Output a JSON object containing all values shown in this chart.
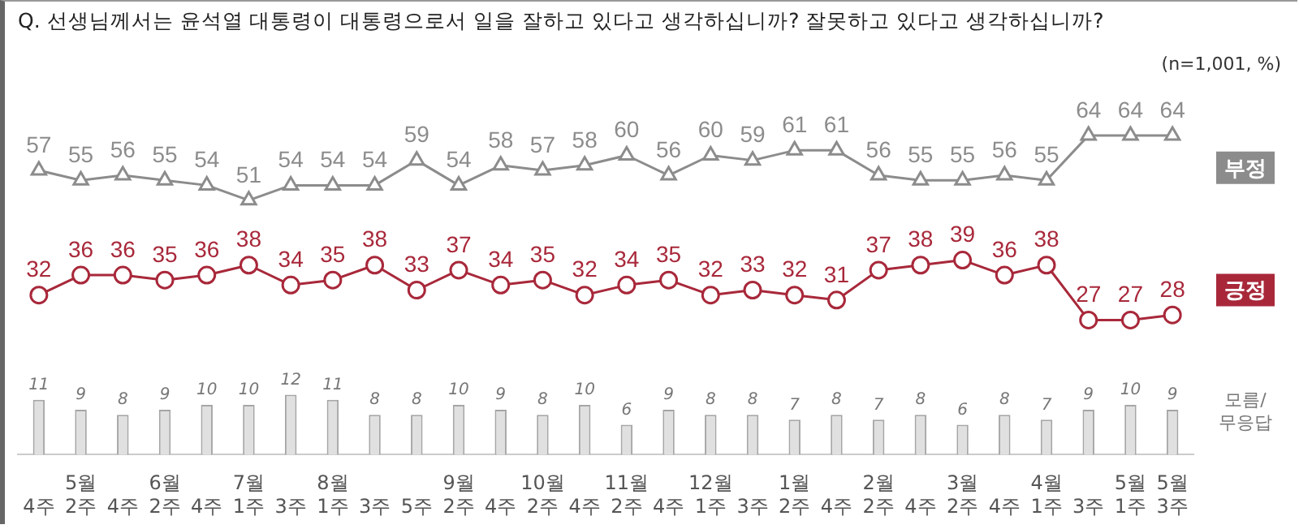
{
  "chart_data": {
    "type": "line",
    "title": "Q. 선생님께서는 윤석열 대통령이 대통령으로서 일을 잘하고 있다고 생각하십니까? 잘못하고 있다고 생각하십니까?",
    "annotations": [
      "(n=1,001, %)"
    ],
    "categories": [
      "4주",
      "5월\n2주",
      "4주",
      "6월\n2주",
      "4주",
      "7월\n1주",
      "3주",
      "8월\n1주",
      "3주",
      "5주",
      "9월\n2주",
      "4주",
      "10월\n2주",
      "4주",
      "11월\n2주",
      "4주",
      "12월\n1주",
      "3주",
      "1월\n2주",
      "4주",
      "2월\n2주",
      "4주",
      "3월\n2주",
      "4주",
      "4월\n1주",
      "3주",
      "5월\n1주",
      "5월\n3주"
    ],
    "series": [
      {
        "name": "부정",
        "color": "#8c8c8c",
        "marker": "triangle",
        "values": [
          57,
          55,
          56,
          55,
          54,
          51,
          54,
          54,
          54,
          59,
          54,
          58,
          57,
          58,
          60,
          56,
          60,
          59,
          61,
          61,
          56,
          55,
          55,
          56,
          55,
          64,
          64,
          64
        ]
      },
      {
        "name": "긍정",
        "color": "#a8283a",
        "marker": "circle",
        "values": [
          32,
          36,
          36,
          35,
          36,
          38,
          34,
          35,
          38,
          33,
          37,
          34,
          35,
          32,
          34,
          35,
          32,
          33,
          32,
          31,
          37,
          38,
          39,
          36,
          38,
          27,
          27,
          28
        ]
      },
      {
        "name": "모름/무응답",
        "type": "bar",
        "color": "#e0e0e0",
        "values": [
          11,
          9,
          8,
          9,
          10,
          10,
          12,
          11,
          8,
          8,
          10,
          9,
          8,
          10,
          6,
          9,
          8,
          8,
          7,
          8,
          7,
          8,
          6,
          8,
          7,
          9,
          10,
          9
        ]
      }
    ],
    "data_labels": true,
    "legend": "right",
    "tick_labels": "x",
    "grid": false
  }
}
